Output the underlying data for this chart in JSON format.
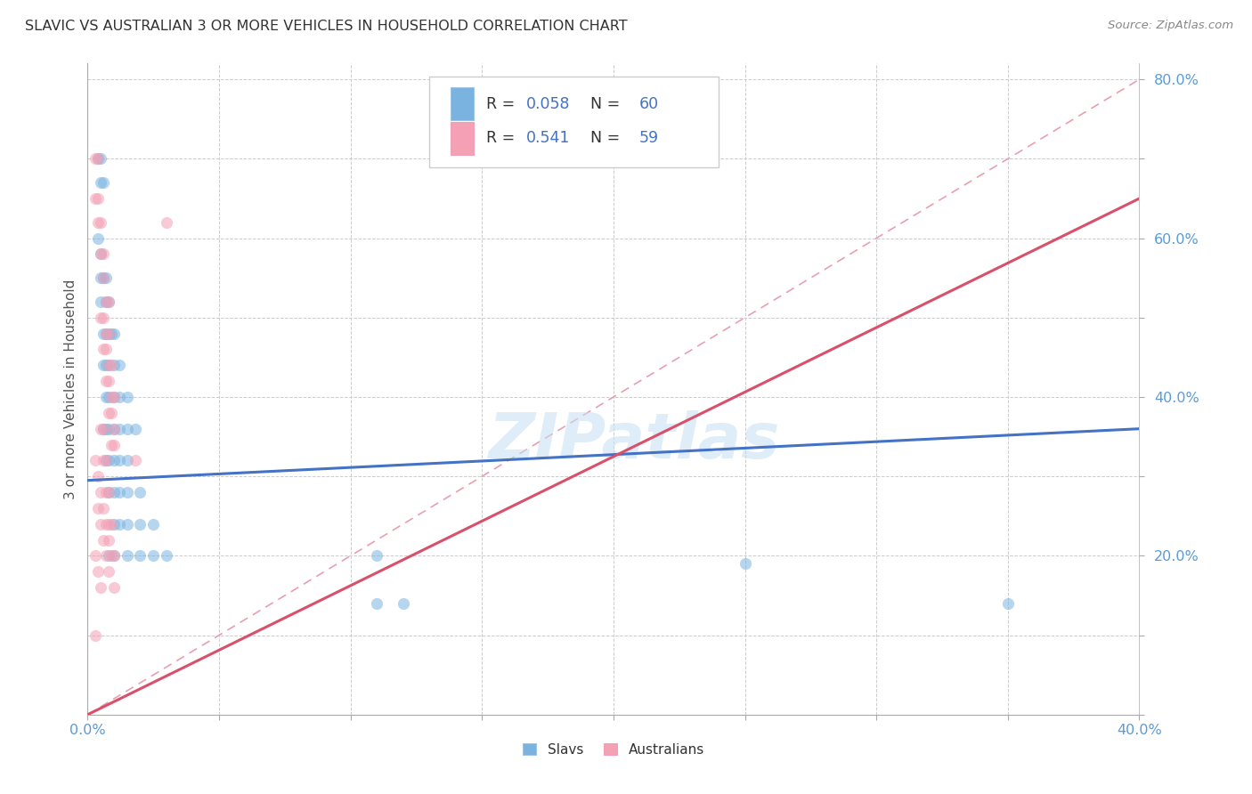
{
  "title": "SLAVIC VS AUSTRALIAN 3 OR MORE VEHICLES IN HOUSEHOLD CORRELATION CHART",
  "source": "Source: ZipAtlas.com",
  "ylabel": "3 or more Vehicles in Household",
  "watermark": "ZIPatlas",
  "xlim": [
    0.0,
    0.4
  ],
  "ylim": [
    0.0,
    0.82
  ],
  "x_ticks": [
    0.0,
    0.05,
    0.1,
    0.15,
    0.2,
    0.25,
    0.3,
    0.35,
    0.4
  ],
  "y_ticks": [
    0.0,
    0.1,
    0.2,
    0.3,
    0.4,
    0.5,
    0.6,
    0.7,
    0.8
  ],
  "slavs_color": "#7ab3e0",
  "australians_color": "#f4a0b5",
  "slavs_line_color": "#4472c4",
  "australians_line_color": "#d9506a",
  "diag_line_color": "#e8a0b0",
  "grid_color": "#cccccc",
  "background_color": "#ffffff",
  "marker_size": 90,
  "marker_alpha": 0.55,
  "legend_R_color": "#4472c4",
  "legend_N_color": "#4472c4",
  "legend_label_color": "#333333",
  "slavs_line_x": [
    0.0,
    0.4
  ],
  "slavs_line_y": [
    0.295,
    0.36
  ],
  "australians_line_x": [
    0.0,
    0.4
  ],
  "australians_line_y": [
    0.0,
    0.65
  ],
  "diag_line_x": [
    0.0,
    0.4
  ],
  "diag_line_y": [
    0.0,
    0.8
  ],
  "slavs_scatter": [
    [
      0.004,
      0.7
    ],
    [
      0.005,
      0.7
    ],
    [
      0.005,
      0.67
    ],
    [
      0.006,
      0.67
    ],
    [
      0.004,
      0.6
    ],
    [
      0.005,
      0.58
    ],
    [
      0.005,
      0.55
    ],
    [
      0.006,
      0.55
    ],
    [
      0.005,
      0.52
    ],
    [
      0.007,
      0.55
    ],
    [
      0.007,
      0.52
    ],
    [
      0.008,
      0.52
    ],
    [
      0.006,
      0.48
    ],
    [
      0.007,
      0.48
    ],
    [
      0.008,
      0.48
    ],
    [
      0.009,
      0.48
    ],
    [
      0.01,
      0.48
    ],
    [
      0.006,
      0.44
    ],
    [
      0.007,
      0.44
    ],
    [
      0.008,
      0.44
    ],
    [
      0.01,
      0.44
    ],
    [
      0.012,
      0.44
    ],
    [
      0.007,
      0.4
    ],
    [
      0.008,
      0.4
    ],
    [
      0.01,
      0.4
    ],
    [
      0.012,
      0.4
    ],
    [
      0.015,
      0.4
    ],
    [
      0.006,
      0.36
    ],
    [
      0.007,
      0.36
    ],
    [
      0.008,
      0.36
    ],
    [
      0.01,
      0.36
    ],
    [
      0.012,
      0.36
    ],
    [
      0.015,
      0.36
    ],
    [
      0.018,
      0.36
    ],
    [
      0.007,
      0.32
    ],
    [
      0.008,
      0.32
    ],
    [
      0.01,
      0.32
    ],
    [
      0.012,
      0.32
    ],
    [
      0.015,
      0.32
    ],
    [
      0.008,
      0.28
    ],
    [
      0.01,
      0.28
    ],
    [
      0.012,
      0.28
    ],
    [
      0.015,
      0.28
    ],
    [
      0.02,
      0.28
    ],
    [
      0.01,
      0.24
    ],
    [
      0.012,
      0.24
    ],
    [
      0.015,
      0.24
    ],
    [
      0.02,
      0.24
    ],
    [
      0.025,
      0.24
    ],
    [
      0.008,
      0.2
    ],
    [
      0.01,
      0.2
    ],
    [
      0.015,
      0.2
    ],
    [
      0.02,
      0.2
    ],
    [
      0.025,
      0.2
    ],
    [
      0.03,
      0.2
    ],
    [
      0.11,
      0.2
    ],
    [
      0.11,
      0.14
    ],
    [
      0.12,
      0.14
    ],
    [
      0.25,
      0.19
    ],
    [
      0.35,
      0.14
    ]
  ],
  "australians_scatter": [
    [
      0.003,
      0.7
    ],
    [
      0.004,
      0.7
    ],
    [
      0.003,
      0.65
    ],
    [
      0.004,
      0.65
    ],
    [
      0.004,
      0.62
    ],
    [
      0.005,
      0.62
    ],
    [
      0.005,
      0.58
    ],
    [
      0.006,
      0.58
    ],
    [
      0.006,
      0.55
    ],
    [
      0.007,
      0.52
    ],
    [
      0.008,
      0.52
    ],
    [
      0.007,
      0.48
    ],
    [
      0.008,
      0.48
    ],
    [
      0.008,
      0.44
    ],
    [
      0.009,
      0.44
    ],
    [
      0.009,
      0.4
    ],
    [
      0.01,
      0.4
    ],
    [
      0.01,
      0.36
    ],
    [
      0.005,
      0.5
    ],
    [
      0.006,
      0.5
    ],
    [
      0.006,
      0.46
    ],
    [
      0.007,
      0.46
    ],
    [
      0.007,
      0.42
    ],
    [
      0.008,
      0.42
    ],
    [
      0.008,
      0.38
    ],
    [
      0.009,
      0.38
    ],
    [
      0.009,
      0.34
    ],
    [
      0.01,
      0.34
    ],
    [
      0.005,
      0.36
    ],
    [
      0.006,
      0.36
    ],
    [
      0.006,
      0.32
    ],
    [
      0.007,
      0.32
    ],
    [
      0.007,
      0.28
    ],
    [
      0.008,
      0.28
    ],
    [
      0.008,
      0.24
    ],
    [
      0.009,
      0.24
    ],
    [
      0.009,
      0.2
    ],
    [
      0.01,
      0.2
    ],
    [
      0.01,
      0.16
    ],
    [
      0.003,
      0.32
    ],
    [
      0.004,
      0.3
    ],
    [
      0.005,
      0.28
    ],
    [
      0.006,
      0.26
    ],
    [
      0.007,
      0.24
    ],
    [
      0.008,
      0.22
    ],
    [
      0.004,
      0.26
    ],
    [
      0.005,
      0.24
    ],
    [
      0.006,
      0.22
    ],
    [
      0.007,
      0.2
    ],
    [
      0.008,
      0.18
    ],
    [
      0.003,
      0.2
    ],
    [
      0.004,
      0.18
    ],
    [
      0.005,
      0.16
    ],
    [
      0.003,
      0.1
    ],
    [
      0.03,
      0.62
    ],
    [
      0.018,
      0.32
    ]
  ]
}
